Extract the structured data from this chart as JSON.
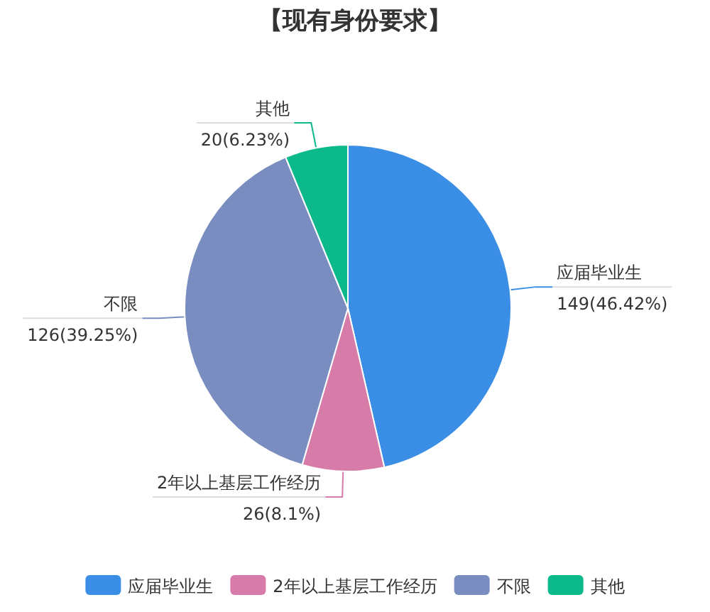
{
  "chart_data": {
    "type": "pie",
    "title": "【现有身份要求】",
    "categories": [
      "应届毕业生",
      "2年以上基层工作经历",
      "不限",
      "其他"
    ],
    "values": [
      149,
      26,
      126,
      20
    ],
    "colors": [
      "#3a8ee6",
      "#d77ba9",
      "#7a8dc0",
      "#0bb98a"
    ],
    "value_labels": [
      "149(46.42%)",
      "26(8.1%)",
      "126(39.25%)",
      "20(6.23%)"
    ],
    "legend": "bottom"
  }
}
